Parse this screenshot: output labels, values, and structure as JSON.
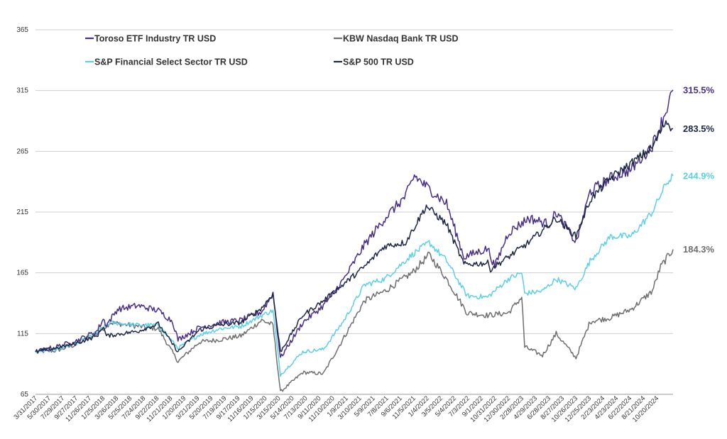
{
  "chart_data": {
    "type": "line",
    "title": "",
    "xlabel": "",
    "ylabel": "",
    "ylim": [
      65,
      365
    ],
    "yticks": [
      65,
      115,
      165,
      215,
      265,
      315,
      365
    ],
    "grid": "horizontal",
    "legend": "top-left",
    "x_range": [
      "3/31/2017",
      "12/31/2024"
    ],
    "xtick_labels": [
      "3/31/2017",
      "5/30/2017",
      "7/29/2017",
      "9/27/2017",
      "11/26/2017",
      "1/25/2018",
      "3/26/2018",
      "5/25/2018",
      "7/24/2018",
      "9/22/2018",
      "11/21/2018",
      "1/20/2019",
      "3/21/2019",
      "5/20/2019",
      "7/19/2019",
      "9/17/2019",
      "11/16/2019",
      "1/15/2020",
      "3/15/2020",
      "5/14/2020",
      "7/13/2020",
      "9/11/2020",
      "11/10/2020",
      "1/9/2021",
      "3/10/2021",
      "5/9/2021",
      "7/8/2021",
      "9/6/2021",
      "11/5/2021",
      "1/4/2022",
      "3/5/2022",
      "5/4/2022",
      "7/3/2022",
      "9/1/2022",
      "10/31/2022",
      "12/30/2022",
      "2/28/2023",
      "4/29/2023",
      "6/28/2023",
      "8/27/2023",
      "10/26/2023",
      "12/25/2023",
      "2/23/2024",
      "4/23/2024",
      "6/22/2024",
      "8/21/2024",
      "10/20/2024"
    ],
    "series": [
      {
        "name": "Toroso ETF Industry TR USD",
        "color": "#4a2d8a",
        "end_label": "315.5%",
        "values": [
          [
            "3/31/2017",
            100
          ],
          [
            "6/30/2017",
            104
          ],
          [
            "9/29/2017",
            109
          ],
          [
            "12/29/2017",
            117
          ],
          [
            "1/26/2018",
            127
          ],
          [
            "2/9/2018",
            122
          ],
          [
            "3/30/2018",
            135
          ],
          [
            "6/29/2018",
            138
          ],
          [
            "9/28/2018",
            134
          ],
          [
            "11/30/2018",
            125
          ],
          [
            "12/24/2018",
            110
          ],
          [
            "3/29/2019",
            120
          ],
          [
            "6/28/2019",
            124
          ],
          [
            "9/30/2019",
            126
          ],
          [
            "12/31/2019",
            133
          ],
          [
            "2/19/2020",
            148
          ],
          [
            "3/23/2020",
            95
          ],
          [
            "6/30/2020",
            124
          ],
          [
            "9/30/2020",
            138
          ],
          [
            "12/31/2020",
            160
          ],
          [
            "3/31/2021",
            188
          ],
          [
            "6/30/2021",
            210
          ],
          [
            "9/30/2021",
            228
          ],
          [
            "11/8/2021",
            245
          ],
          [
            "12/31/2021",
            236
          ],
          [
            "3/31/2022",
            222
          ],
          [
            "6/16/2022",
            178
          ],
          [
            "9/30/2022",
            185
          ],
          [
            "10/31/2022",
            170
          ],
          [
            "12/30/2022",
            198
          ],
          [
            "3/31/2023",
            210
          ],
          [
            "6/30/2023",
            205
          ],
          [
            "7/31/2023",
            215
          ],
          [
            "10/27/2023",
            190
          ],
          [
            "12/29/2023",
            232
          ],
          [
            "3/28/2024",
            243
          ],
          [
            "6/28/2024",
            250
          ],
          [
            "9/30/2024",
            270
          ],
          [
            "11/29/2024",
            298
          ],
          [
            "12/31/2024",
            315.5
          ]
        ]
      },
      {
        "name": "KBW Nasdaq Bank TR USD",
        "color": "#6e6e6e",
        "end_label": "184.3%",
        "values": [
          [
            "3/31/2017",
            100
          ],
          [
            "6/30/2017",
            101
          ],
          [
            "9/29/2017",
            106
          ],
          [
            "12/29/2017",
            115
          ],
          [
            "2/26/2018",
            124
          ],
          [
            "6/29/2018",
            121
          ],
          [
            "9/28/2018",
            119
          ],
          [
            "12/24/2018",
            92
          ],
          [
            "3/29/2019",
            108
          ],
          [
            "6/28/2019",
            110
          ],
          [
            "9/30/2019",
            113
          ],
          [
            "12/31/2019",
            126
          ],
          [
            "2/19/2020",
            122
          ],
          [
            "3/23/2020",
            67
          ],
          [
            "6/30/2020",
            83
          ],
          [
            "9/30/2020",
            82
          ],
          [
            "12/31/2020",
            112
          ],
          [
            "3/31/2021",
            142
          ],
          [
            "6/30/2021",
            150
          ],
          [
            "10/29/2021",
            165
          ],
          [
            "1/13/2022",
            180
          ],
          [
            "3/31/2022",
            160
          ],
          [
            "6/30/2022",
            132
          ],
          [
            "9/30/2022",
            130
          ],
          [
            "12/30/2022",
            132
          ],
          [
            "2/28/2023",
            145
          ],
          [
            "3/13/2023",
            104
          ],
          [
            "5/31/2023",
            97
          ],
          [
            "7/31/2023",
            115
          ],
          [
            "10/27/2023",
            95
          ],
          [
            "12/29/2023",
            125
          ],
          [
            "3/28/2024",
            128
          ],
          [
            "6/28/2024",
            135
          ],
          [
            "9/30/2024",
            150
          ],
          [
            "11/6/2024",
            170
          ],
          [
            "12/31/2024",
            184.3
          ]
        ]
      },
      {
        "name": "S&P Financial Select Sector TR USD",
        "color": "#5bd0ea",
        "end_label": "244.9%",
        "values": [
          [
            "3/31/2017",
            100
          ],
          [
            "6/30/2017",
            102
          ],
          [
            "9/29/2017",
            107
          ],
          [
            "12/29/2017",
            116
          ],
          [
            "2/26/2018",
            124
          ],
          [
            "6/29/2018",
            122
          ],
          [
            "9/28/2018",
            122
          ],
          [
            "12/24/2018",
            103
          ],
          [
            "3/29/2019",
            114
          ],
          [
            "6/28/2019",
            119
          ],
          [
            "9/30/2019",
            121
          ],
          [
            "12/31/2019",
            130
          ],
          [
            "2/19/2020",
            134
          ],
          [
            "3/23/2020",
            81
          ],
          [
            "6/30/2020",
            100
          ],
          [
            "9/30/2020",
            102
          ],
          [
            "12/31/2020",
            126
          ],
          [
            "3/31/2021",
            155
          ],
          [
            "6/30/2021",
            160
          ],
          [
            "10/29/2021",
            180
          ],
          [
            "1/13/2022",
            190
          ],
          [
            "3/31/2022",
            175
          ],
          [
            "6/30/2022",
            146
          ],
          [
            "9/30/2022",
            145
          ],
          [
            "12/30/2022",
            160
          ],
          [
            "2/28/2023",
            165
          ],
          [
            "3/13/2023",
            148
          ],
          [
            "5/31/2023",
            150
          ],
          [
            "7/31/2023",
            160
          ],
          [
            "10/27/2023",
            152
          ],
          [
            "12/29/2023",
            175
          ],
          [
            "3/28/2024",
            195
          ],
          [
            "6/28/2024",
            195
          ],
          [
            "9/30/2024",
            215
          ],
          [
            "11/29/2024",
            238
          ],
          [
            "12/31/2024",
            244.9
          ]
        ]
      },
      {
        "name": "S&P 500 TR USD",
        "color": "#1c2745",
        "end_label": "283.5%",
        "values": [
          [
            "3/31/2017",
            100
          ],
          [
            "6/30/2017",
            103
          ],
          [
            "9/29/2017",
            107
          ],
          [
            "12/29/2017",
            113
          ],
          [
            "1/26/2018",
            121
          ],
          [
            "2/9/2018",
            113
          ],
          [
            "6/29/2018",
            117
          ],
          [
            "9/28/2018",
            123
          ],
          [
            "12/24/2018",
            100
          ],
          [
            "3/29/2019",
            118
          ],
          [
            "6/28/2019",
            122
          ],
          [
            "9/30/2019",
            124
          ],
          [
            "12/31/2019",
            136
          ],
          [
            "2/19/2020",
            148
          ],
          [
            "3/23/2020",
            100
          ],
          [
            "6/30/2020",
            130
          ],
          [
            "9/30/2020",
            142
          ],
          [
            "12/31/2020",
            156
          ],
          [
            "3/31/2021",
            170
          ],
          [
            "6/30/2021",
            187
          ],
          [
            "9/30/2021",
            190
          ],
          [
            "12/31/2021",
            220
          ],
          [
            "3/31/2022",
            205
          ],
          [
            "6/16/2022",
            172
          ],
          [
            "9/30/2022",
            173
          ],
          [
            "10/12/2022",
            168
          ],
          [
            "12/30/2022",
            178
          ],
          [
            "3/31/2023",
            190
          ],
          [
            "7/31/2023",
            210
          ],
          [
            "10/27/2023",
            195
          ],
          [
            "12/29/2023",
            225
          ],
          [
            "3/28/2024",
            243
          ],
          [
            "6/28/2024",
            255
          ],
          [
            "9/30/2024",
            268
          ],
          [
            "11/29/2024",
            290
          ],
          [
            "12/31/2024",
            283.5
          ]
        ]
      }
    ]
  }
}
